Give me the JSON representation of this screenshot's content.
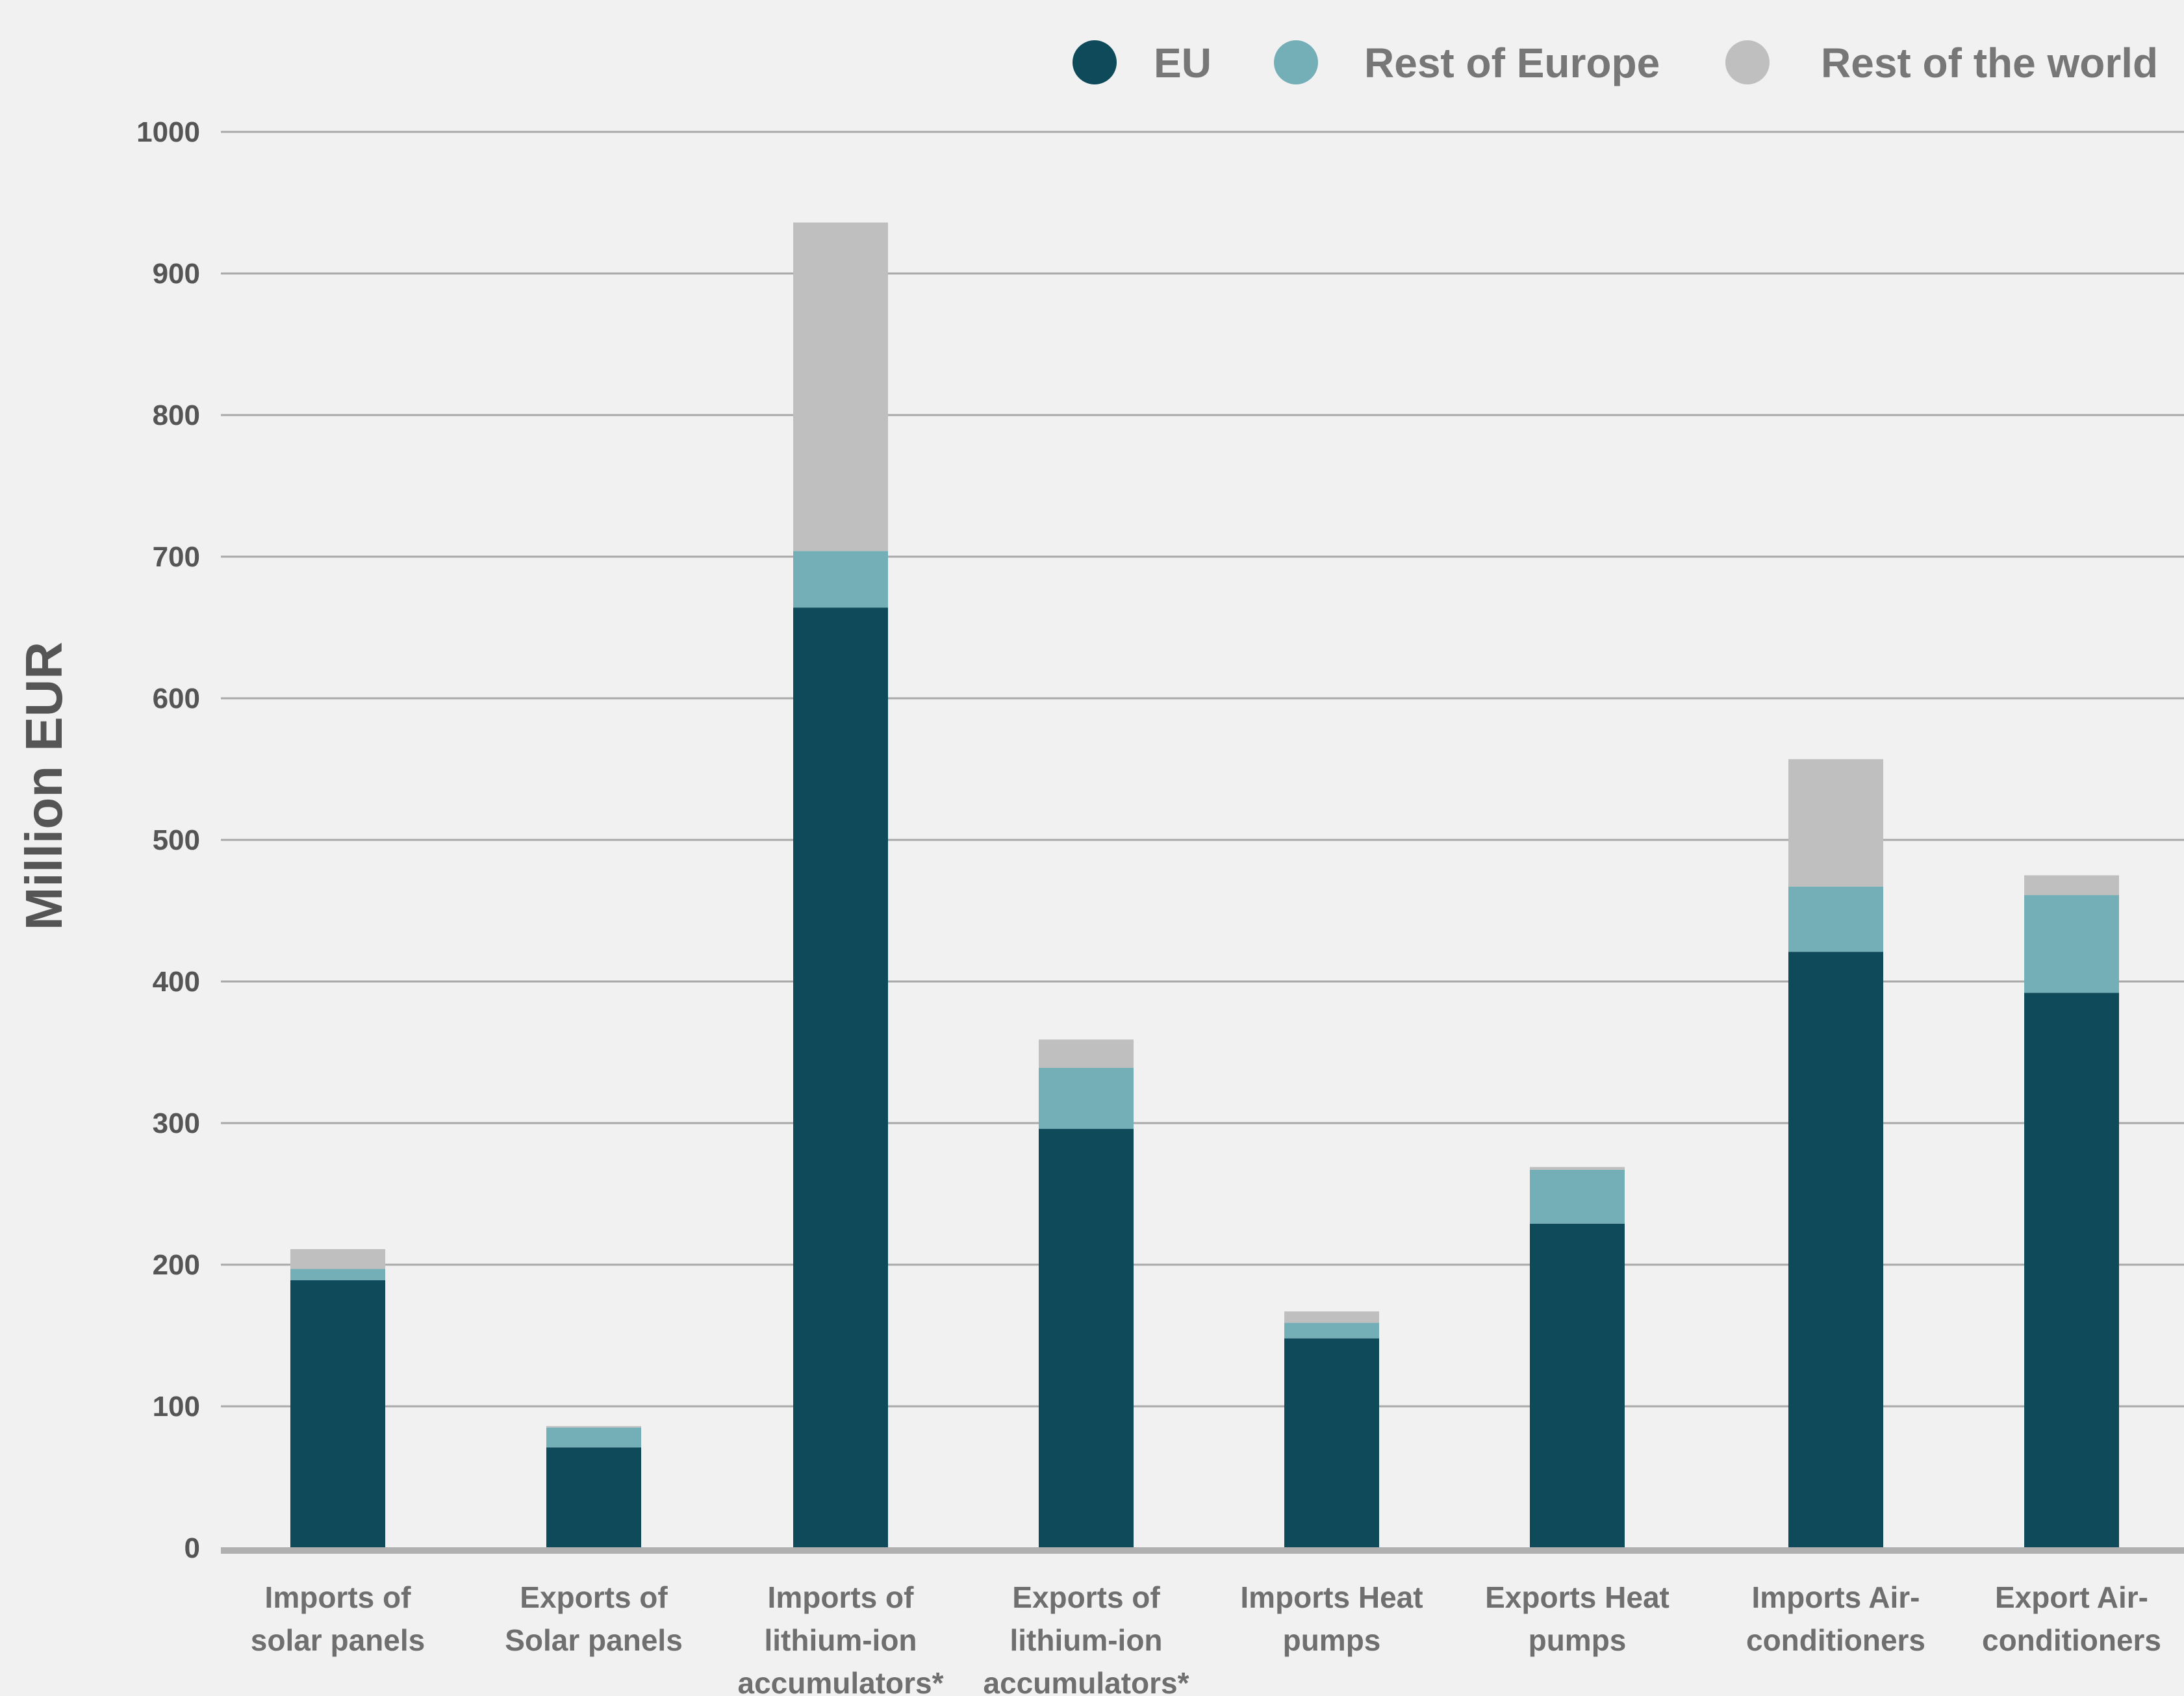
{
  "chart_data": {
    "type": "bar",
    "stacked": true,
    "ylabel": "Million EUR",
    "ylim": [
      0,
      1000
    ],
    "yticks": [
      0,
      100,
      200,
      300,
      400,
      500,
      600,
      700,
      800,
      900,
      1000
    ],
    "grid": true,
    "legend_position": "top-right",
    "categories": [
      [
        "Imports of",
        "solar panels"
      ],
      [
        "Exports of",
        "Solar panels"
      ],
      [
        "Imports of",
        "lithium-ion",
        "accumulators*"
      ],
      [
        "Exports of",
        "lithium-ion",
        "accumulators*"
      ],
      [
        "Imports Heat",
        "pumps"
      ],
      [
        "Exports Heat",
        "pumps"
      ],
      [
        "Imports Air-",
        "conditioners"
      ],
      [
        "Export Air-",
        "conditioners"
      ]
    ],
    "series": [
      {
        "name": "EU",
        "color": "#0f4a5a",
        "values": [
          189,
          71,
          664,
          296,
          148,
          229,
          421,
          392
        ]
      },
      {
        "name": "Rest of Europe",
        "color": "#74aeb7",
        "values": [
          8,
          14,
          40,
          43,
          11,
          38,
          46,
          69
        ]
      },
      {
        "name": "Rest of the world",
        "color": "#bfbfbf",
        "values": [
          14,
          1,
          232,
          20,
          8,
          2,
          90,
          14
        ]
      }
    ]
  }
}
